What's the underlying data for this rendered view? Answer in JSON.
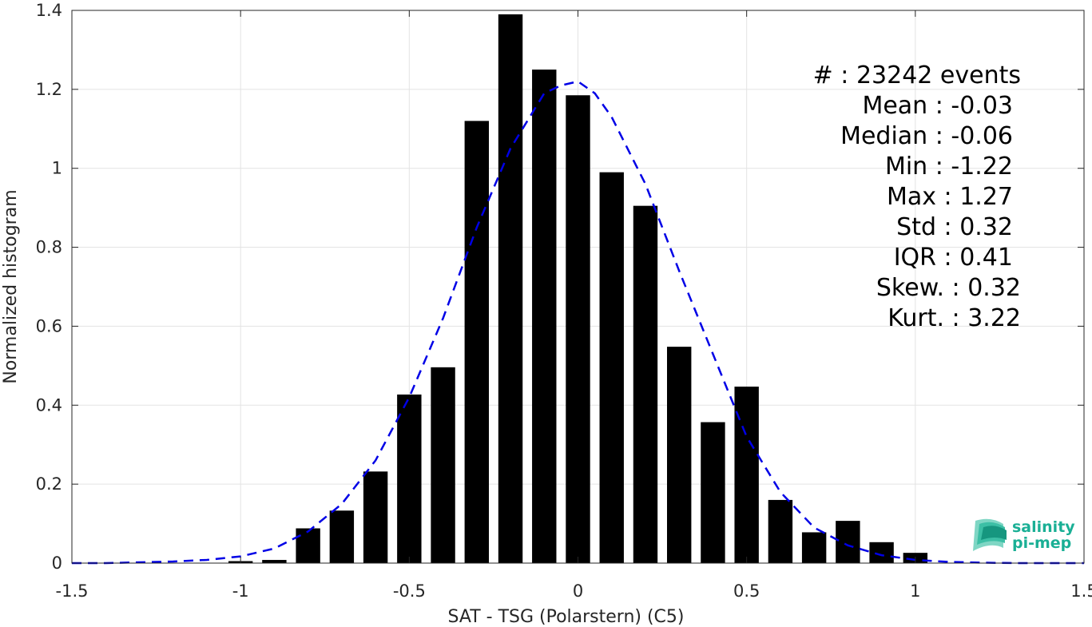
{
  "chart_data": {
    "type": "bar",
    "xlabel": "SAT - TSG (Polarstern) (C5)",
    "ylabel": "Normalized histogram",
    "xlim": [
      -1.5,
      1.5
    ],
    "ylim": [
      0,
      1.4
    ],
    "xticks": [
      -1.5,
      -1,
      -0.5,
      0,
      0.5,
      1,
      1.5
    ],
    "xtick_labels": [
      "-1.5",
      "-1",
      "-0.5",
      "0",
      "0.5",
      "1",
      "1.5"
    ],
    "yticks": [
      0,
      0.2,
      0.4,
      0.6,
      0.8,
      1,
      1.2,
      1.4
    ],
    "ytick_labels": [
      "0",
      "0.2",
      "0.4",
      "0.6",
      "0.8",
      "1",
      "1.2",
      "1.4"
    ],
    "grid": true,
    "bar_color": "#000000",
    "bars": {
      "x": [
        -1.0,
        -0.9,
        -0.8,
        -0.7,
        -0.6,
        -0.5,
        -0.4,
        -0.3,
        -0.2,
        -0.1,
        0.0,
        0.1,
        0.2,
        0.3,
        0.4,
        0.5,
        0.6,
        0.7,
        0.8,
        0.9,
        1.0
      ],
      "values": [
        0.005,
        0.008,
        0.088,
        0.133,
        0.232,
        0.427,
        0.496,
        1.12,
        1.39,
        1.25,
        1.185,
        0.99,
        0.905,
        0.548,
        0.357,
        0.447,
        0.16,
        0.078,
        0.107,
        0.053,
        0.026
      ]
    },
    "fit_curve": {
      "style": "dashed",
      "color": "#0000e6",
      "x": [
        -1.5,
        -1.4,
        -1.3,
        -1.2,
        -1.1,
        -1.0,
        -0.9,
        -0.8,
        -0.7,
        -0.6,
        -0.5,
        -0.4,
        -0.3,
        -0.2,
        -0.1,
        -0.05,
        0.0,
        0.05,
        0.1,
        0.2,
        0.3,
        0.4,
        0.5,
        0.6,
        0.7,
        0.8,
        0.9,
        1.0,
        1.1,
        1.2,
        1.3,
        1.4,
        1.5
      ],
      "y": [
        0.0,
        0.0,
        0.002,
        0.004,
        0.008,
        0.017,
        0.037,
        0.08,
        0.15,
        0.26,
        0.42,
        0.62,
        0.85,
        1.05,
        1.19,
        1.21,
        1.22,
        1.19,
        1.13,
        0.96,
        0.74,
        0.53,
        0.32,
        0.18,
        0.09,
        0.045,
        0.02,
        0.008,
        0.003,
        0.001,
        0.0,
        0.0,
        0.0
      ]
    },
    "annotation": [
      "#  : 23242 events",
      "Mean : -0.03",
      "Median : -0.06",
      "Min : -1.22",
      "Max : 1.27",
      "Std : 0.32",
      "IQR : 0.41",
      "Skew. : 0.32",
      "Kurt. : 3.22"
    ]
  },
  "logo": {
    "line1": "salinity",
    "line2": "pi-mep",
    "color": "#1aaf95"
  }
}
